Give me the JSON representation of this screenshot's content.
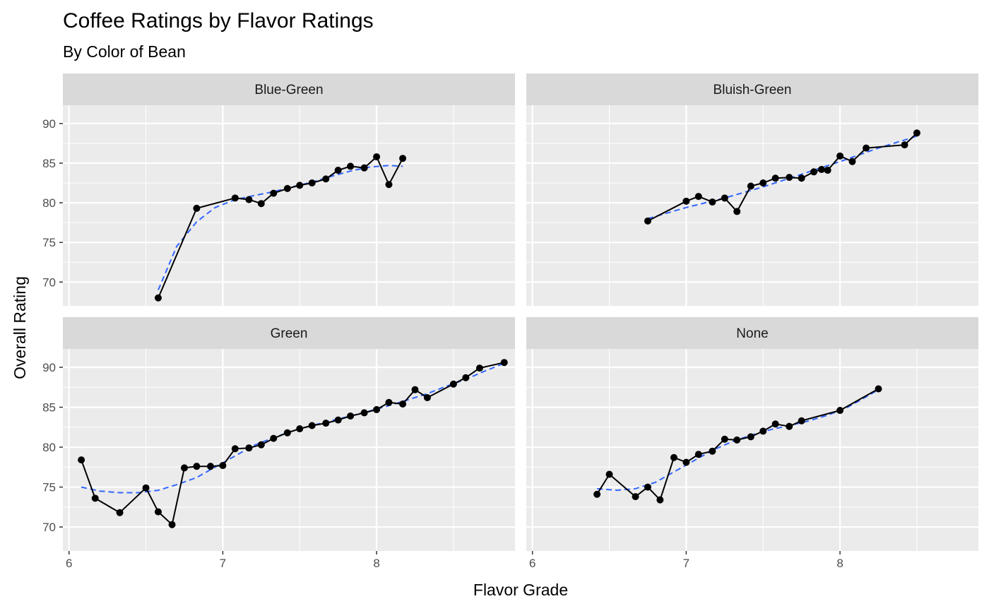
{
  "chart_data": {
    "type": "line",
    "title": "Coffee Ratings by Flavor Ratings",
    "subtitle": "By Color of Bean",
    "xlabel": "Flavor Grade",
    "ylabel": "Overall Rating",
    "xlim": [
      5.96,
      8.9
    ],
    "ylim": [
      67,
      92.3
    ],
    "x_ticks": [
      6,
      7,
      8
    ],
    "y_ticks": [
      70,
      75,
      80,
      85,
      90
    ],
    "grid": true,
    "legend": "none",
    "colors": {
      "panel_bg": "#ebebeb",
      "strip_bg": "#d9d9d9",
      "grid": "#ffffff",
      "line": "#000000",
      "smooth": "#3366ff"
    },
    "panels": [
      {
        "name": "Blue-Green",
        "x": [
          6.58,
          6.83,
          7.08,
          7.17,
          7.25,
          7.33,
          7.42,
          7.5,
          7.58,
          7.67,
          7.75,
          7.83,
          7.92,
          8.0,
          8.08,
          8.17
        ],
        "y": [
          68.0,
          79.3,
          80.6,
          80.4,
          79.9,
          81.2,
          81.8,
          82.2,
          82.5,
          83.0,
          84.1,
          84.6,
          84.4,
          85.8,
          82.3,
          85.6
        ],
        "smooth_x": [
          6.58,
          6.7,
          6.83,
          6.95,
          7.08,
          7.2,
          7.33,
          7.45,
          7.58,
          7.7,
          7.83,
          7.95,
          8.08,
          8.17
        ],
        "smooth_y": [
          69.0,
          74.5,
          77.6,
          79.4,
          80.4,
          80.9,
          81.4,
          82.0,
          82.6,
          83.3,
          84.0,
          84.5,
          84.7,
          84.6
        ]
      },
      {
        "name": "Bluish-Green",
        "x": [
          6.75,
          7.0,
          7.08,
          7.17,
          7.25,
          7.33,
          7.42,
          7.5,
          7.58,
          7.67,
          7.75,
          7.83,
          7.88,
          7.92,
          8.0,
          8.08,
          8.17,
          8.42,
          8.5
        ],
        "y": [
          77.7,
          80.2,
          80.8,
          80.1,
          80.6,
          78.9,
          82.1,
          82.5,
          83.1,
          83.2,
          83.1,
          83.9,
          84.2,
          84.1,
          85.9,
          85.2,
          86.9,
          87.3,
          88.8
        ],
        "smooth_x": [
          6.75,
          7.0,
          7.25,
          7.5,
          7.75,
          8.0,
          8.25,
          8.5
        ],
        "smooth_y": [
          78.0,
          79.4,
          80.6,
          82.0,
          83.6,
          85.2,
          86.9,
          88.4
        ]
      },
      {
        "name": "Green",
        "x": [
          6.08,
          6.17,
          6.33,
          6.5,
          6.58,
          6.67,
          6.75,
          6.83,
          6.92,
          7.0,
          7.08,
          7.17,
          7.25,
          7.33,
          7.42,
          7.5,
          7.58,
          7.67,
          7.75,
          7.83,
          7.92,
          8.0,
          8.08,
          8.17,
          8.25,
          8.33,
          8.5,
          8.58,
          8.67,
          8.83
        ],
        "y": [
          78.4,
          73.6,
          71.8,
          74.9,
          71.9,
          70.3,
          77.4,
          77.6,
          77.6,
          77.7,
          79.8,
          79.9,
          80.3,
          81.1,
          81.8,
          82.3,
          82.7,
          83.0,
          83.4,
          83.9,
          84.3,
          84.7,
          85.6,
          85.4,
          87.2,
          86.2,
          87.9,
          88.7,
          89.9,
          90.6
        ],
        "smooth_x": [
          6.08,
          6.2,
          6.33,
          6.45,
          6.58,
          6.7,
          6.83,
          6.95,
          7.08,
          7.2,
          7.33,
          7.45,
          7.58,
          7.7,
          7.83,
          7.95,
          8.08,
          8.2,
          8.33,
          8.45,
          8.58,
          8.7,
          8.83
        ],
        "smooth_y": [
          75.0,
          74.5,
          74.3,
          74.3,
          74.6,
          75.3,
          76.2,
          77.5,
          78.9,
          80.2,
          81.2,
          82.0,
          82.7,
          83.3,
          83.9,
          84.5,
          85.2,
          85.9,
          86.7,
          87.6,
          88.5,
          89.5,
          90.5
        ]
      },
      {
        "name": "None",
        "x": [
          6.42,
          6.5,
          6.67,
          6.75,
          6.83,
          6.92,
          7.0,
          7.08,
          7.17,
          7.25,
          7.33,
          7.42,
          7.5,
          7.58,
          7.67,
          7.75,
          8.0,
          8.25
        ],
        "y": [
          74.1,
          76.6,
          73.8,
          75.0,
          73.4,
          78.7,
          78.1,
          79.1,
          79.5,
          81.0,
          80.9,
          81.3,
          82.0,
          82.9,
          82.6,
          83.3,
          84.6,
          87.3
        ],
        "smooth_x": [
          6.42,
          6.55,
          6.67,
          6.8,
          6.92,
          7.05,
          7.17,
          7.3,
          7.42,
          7.55,
          7.67,
          7.8,
          7.92,
          8.05,
          8.17,
          8.25
        ],
        "smooth_y": [
          74.8,
          74.6,
          74.8,
          75.6,
          76.9,
          78.3,
          79.6,
          80.7,
          81.5,
          82.2,
          82.7,
          83.3,
          84.0,
          85.0,
          86.3,
          87.2
        ]
      }
    ]
  }
}
